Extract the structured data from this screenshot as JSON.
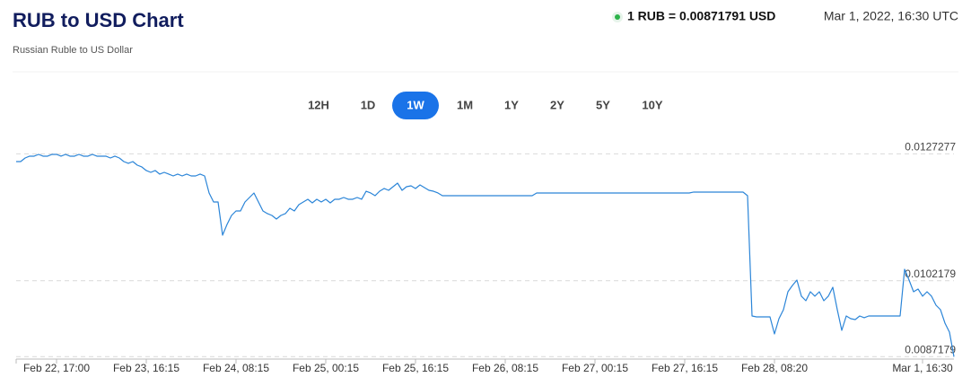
{
  "header": {
    "title": "RUB to USD Chart",
    "subtitle": "Russian Ruble to US Dollar",
    "rate": "1 RUB = 0.00871791 USD",
    "timestamp": "Mar 1, 2022, 16:30 UTC"
  },
  "ranges": [
    "12H",
    "1D",
    "1W",
    "1M",
    "1Y",
    "2Y",
    "5Y",
    "10Y"
  ],
  "selected_range": "1W",
  "chart_data": {
    "type": "line",
    "color": "#2b85d8",
    "grid": true,
    "xlim": [
      0,
      209
    ],
    "ylim": [
      0.00867,
      0.01293
    ],
    "xticks": [
      {
        "value": 9,
        "label": "Feb 22, 17:00"
      },
      {
        "value": 29,
        "label": "Feb 23, 16:15"
      },
      {
        "value": 49,
        "label": "Feb 24, 08:15"
      },
      {
        "value": 69,
        "label": "Feb 25, 00:15"
      },
      {
        "value": 89,
        "label": "Feb 25, 16:15"
      },
      {
        "value": 109,
        "label": "Feb 26, 08:15"
      },
      {
        "value": 129,
        "label": "Feb 27, 00:15"
      },
      {
        "value": 149,
        "label": "Feb 27, 16:15"
      },
      {
        "value": 169,
        "label": "Feb 28, 08:20"
      },
      {
        "value": 202,
        "label": "Mar 1, 16:30"
      }
    ],
    "yticks": [
      0.0087179,
      0.0102179,
      0.0127277
    ],
    "values": [
      0.012575,
      0.012575,
      0.012646,
      0.012682,
      0.012682,
      0.012717,
      0.012682,
      0.012682,
      0.012717,
      0.012717,
      0.012682,
      0.012717,
      0.012682,
      0.012682,
      0.012717,
      0.012682,
      0.012682,
      0.012717,
      0.012682,
      0.012682,
      0.012682,
      0.012646,
      0.012682,
      0.012646,
      0.012575,
      0.01254,
      0.012575,
      0.012504,
      0.012469,
      0.012398,
      0.012362,
      0.012398,
      0.012327,
      0.012362,
      0.012327,
      0.012291,
      0.012327,
      0.012291,
      0.012327,
      0.012291,
      0.012291,
      0.012327,
      0.012291,
      0.011954,
      0.011776,
      0.011776,
      0.01112,
      0.011333,
      0.01151,
      0.011599,
      0.011599,
      0.011776,
      0.011865,
      0.011954,
      0.011776,
      0.011599,
      0.011546,
      0.01151,
      0.011439,
      0.01151,
      0.011546,
      0.011652,
      0.011599,
      0.011723,
      0.011776,
      0.01183,
      0.011759,
      0.01183,
      0.011776,
      0.01183,
      0.011759,
      0.01183,
      0.01183,
      0.011865,
      0.01183,
      0.01183,
      0.011865,
      0.01183,
      0.011989,
      0.011954,
      0.011901,
      0.011989,
      0.012043,
      0.012007,
      0.012078,
      0.012149,
      0.012007,
      0.012078,
      0.012096,
      0.012043,
      0.012114,
      0.01206,
      0.012007,
      0.011989,
      0.011954,
      0.011901,
      0.011901,
      0.011901,
      0.011901,
      0.011901,
      0.011901,
      0.011901,
      0.011901,
      0.011901,
      0.011901,
      0.011901,
      0.011901,
      0.011901,
      0.011901,
      0.011901,
      0.011901,
      0.011901,
      0.011901,
      0.011901,
      0.011901,
      0.011901,
      0.011954,
      0.011954,
      0.011954,
      0.011954,
      0.011954,
      0.011954,
      0.011954,
      0.011954,
      0.011954,
      0.011954,
      0.011954,
      0.011954,
      0.011954,
      0.011954,
      0.011954,
      0.011954,
      0.011954,
      0.011954,
      0.011954,
      0.011954,
      0.011954,
      0.011954,
      0.011954,
      0.011954,
      0.011954,
      0.011954,
      0.011954,
      0.011954,
      0.011954,
      0.011954,
      0.011954,
      0.011954,
      0.011954,
      0.011954,
      0.011954,
      0.011972,
      0.011972,
      0.011972,
      0.011972,
      0.011972,
      0.011972,
      0.011972,
      0.011972,
      0.011972,
      0.011972,
      0.011972,
      0.011972,
      0.011901,
      0.009522,
      0.009504,
      0.009504,
      0.009504,
      0.009504,
      0.009167,
      0.009469,
      0.009646,
      0.010001,
      0.010126,
      0.010232,
      0.009913,
      0.009824,
      0.010001,
      0.009913,
      0.010001,
      0.009824,
      0.009913,
      0.01009,
      0.009646,
      0.009238,
      0.009522,
      0.009469,
      0.009451,
      0.009522,
      0.009487,
      0.009522,
      0.009522,
      0.009522,
      0.009522,
      0.009522,
      0.009522,
      0.009522,
      0.009522,
      0.010445,
      0.010232,
      0.010001,
      0.010055,
      0.009913,
      0.010001,
      0.009913,
      0.009735,
      0.009646,
      0.00938,
      0.009203,
      0.00871791
    ]
  }
}
